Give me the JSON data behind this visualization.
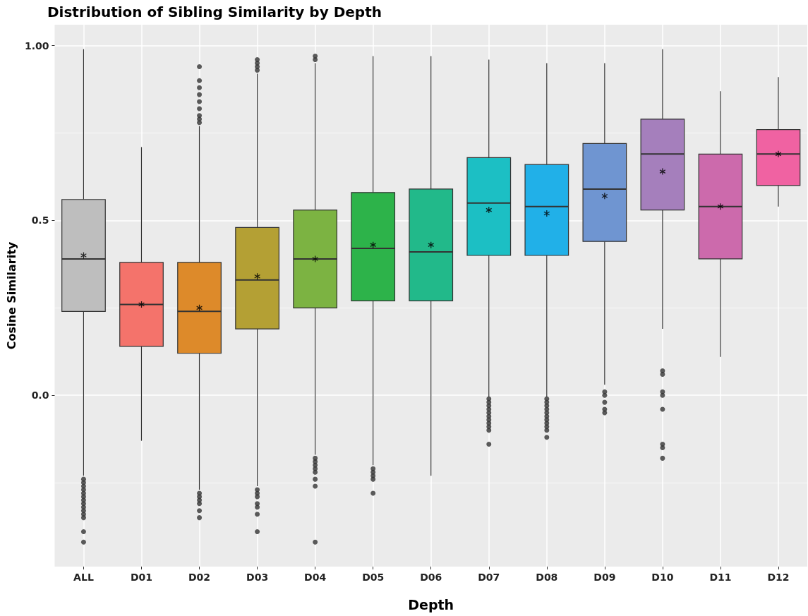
{
  "chart_data": {
    "type": "box",
    "title": "Distribution of Sibling Similarity by Depth",
    "xlabel": "Depth",
    "ylabel": "Cosine Similarity",
    "categories": [
      "ALL",
      "D01",
      "D02",
      "D03",
      "D04",
      "D05",
      "D06",
      "D07",
      "D08",
      "D09",
      "D10",
      "D11",
      "D12"
    ],
    "colors": [
      "#bebebe",
      "#f4736b",
      "#dd8a2a",
      "#b4a034",
      "#7cb342",
      "#2db34a",
      "#22b98a",
      "#1cbfc4",
      "#21b0e8",
      "#6f95d1",
      "#a57fbc",
      "#cc6aac",
      "#f062a2"
    ],
    "boxes": [
      {
        "low": -0.23,
        "q1": 0.24,
        "median": 0.39,
        "q3": 0.56,
        "high": 0.99,
        "mean": 0.4,
        "outliers": [
          -0.24,
          -0.25,
          -0.26,
          -0.27,
          -0.28,
          -0.29,
          -0.3,
          -0.31,
          -0.32,
          -0.33,
          -0.34,
          -0.35,
          -0.39,
          -0.42
        ]
      },
      {
        "low": -0.13,
        "q1": 0.14,
        "median": 0.26,
        "q3": 0.38,
        "high": 0.71,
        "mean": 0.26
      },
      {
        "low": -0.27,
        "q1": 0.12,
        "median": 0.24,
        "q3": 0.38,
        "high": 0.77,
        "mean": 0.25,
        "outliers": [
          0.78,
          0.79,
          0.8,
          0.82,
          0.84,
          0.86,
          0.88,
          0.9,
          0.94,
          -0.28,
          -0.29,
          -0.3,
          -0.31,
          -0.33,
          -0.35
        ]
      },
      {
        "low": -0.26,
        "q1": 0.19,
        "median": 0.33,
        "q3": 0.48,
        "high": 0.92,
        "mean": 0.34,
        "outliers": [
          0.93,
          0.94,
          0.95,
          0.96,
          -0.27,
          -0.28,
          -0.29,
          -0.31,
          -0.32,
          -0.34,
          -0.39
        ]
      },
      {
        "low": -0.17,
        "q1": 0.25,
        "median": 0.39,
        "q3": 0.53,
        "high": 0.95,
        "mean": 0.39,
        "outliers": [
          0.96,
          0.97,
          -0.18,
          -0.19,
          -0.2,
          -0.21,
          -0.22,
          -0.24,
          -0.26,
          -0.42
        ]
      },
      {
        "low": -0.2,
        "q1": 0.27,
        "median": 0.42,
        "q3": 0.58,
        "high": 0.97,
        "mean": 0.43,
        "outliers": [
          -0.21,
          -0.22,
          -0.23,
          -0.24,
          -0.28
        ]
      },
      {
        "low": -0.23,
        "q1": 0.27,
        "median": 0.41,
        "q3": 0.59,
        "high": 0.97,
        "mean": 0.43
      },
      {
        "low": -0.005,
        "q1": 0.4,
        "median": 0.55,
        "q3": 0.68,
        "high": 0.96,
        "mean": 0.53,
        "outliers": [
          -0.01,
          -0.02,
          -0.03,
          -0.04,
          -0.05,
          -0.06,
          -0.07,
          -0.08,
          -0.09,
          -0.1,
          -0.14
        ]
      },
      {
        "low": -0.005,
        "q1": 0.4,
        "median": 0.54,
        "q3": 0.66,
        "high": 0.95,
        "mean": 0.52,
        "outliers": [
          -0.01,
          -0.02,
          -0.03,
          -0.04,
          -0.05,
          -0.06,
          -0.07,
          -0.08,
          -0.09,
          -0.1,
          -0.12
        ]
      },
      {
        "low": 0.03,
        "q1": 0.44,
        "median": 0.59,
        "q3": 0.72,
        "high": 0.95,
        "mean": 0.57,
        "outliers": [
          0.01,
          0.0,
          -0.02,
          -0.04,
          -0.05
        ]
      },
      {
        "low": 0.19,
        "q1": 0.53,
        "median": 0.69,
        "q3": 0.79,
        "high": 0.99,
        "mean": 0.64,
        "outliers": [
          0.07,
          0.06,
          0.01,
          0.0,
          -0.04,
          -0.14,
          -0.15,
          -0.18
        ]
      },
      {
        "low": 0.11,
        "q1": 0.39,
        "median": 0.54,
        "q3": 0.69,
        "high": 0.87,
        "mean": 0.54
      },
      {
        "low": 0.54,
        "q1": 0.6,
        "median": 0.69,
        "q3": 0.76,
        "high": 0.91,
        "mean": 0.69
      }
    ],
    "ylim": [
      -0.49,
      1.06
    ],
    "yticks": [
      {
        "value": -0.25,
        "label": null
      },
      {
        "value": 0,
        "label": "0.0"
      },
      {
        "value": 0.25,
        "label": null
      },
      0.5,
      {
        "value": 0.75,
        "label": null
      },
      {
        "value": 1,
        "label": "1.00"
      }
    ],
    "grid": true,
    "legend": false
  }
}
